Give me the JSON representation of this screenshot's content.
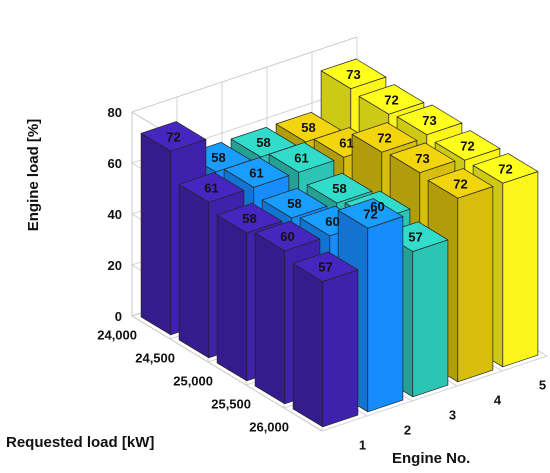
{
  "chart_data": {
    "type": "bar3d",
    "title": "",
    "xlabel": "Engine No.",
    "ylabel": "Requested load [kW]",
    "zlabel": "Engine load [%]",
    "engines": [
      "1",
      "2",
      "3",
      "4",
      "5"
    ],
    "requested_loads": [
      "24,000",
      "24,500",
      "25,000",
      "25,500",
      "26,000"
    ],
    "zlim": [
      0,
      80
    ],
    "zticks": [
      "0",
      "20",
      "40",
      "60",
      "80"
    ],
    "grid": true,
    "values": [
      [
        72,
        58,
        58,
        58,
        73
      ],
      [
        61,
        61,
        61,
        61,
        72
      ],
      [
        58,
        58,
        58,
        72,
        73
      ],
      [
        60,
        60,
        60,
        73,
        72
      ],
      [
        57,
        72,
        57,
        72,
        72
      ]
    ],
    "series_colors": [
      "#3f22ab",
      "#168cff",
      "#2cc4b4",
      "#d8be0c",
      "#fbf519"
    ]
  }
}
